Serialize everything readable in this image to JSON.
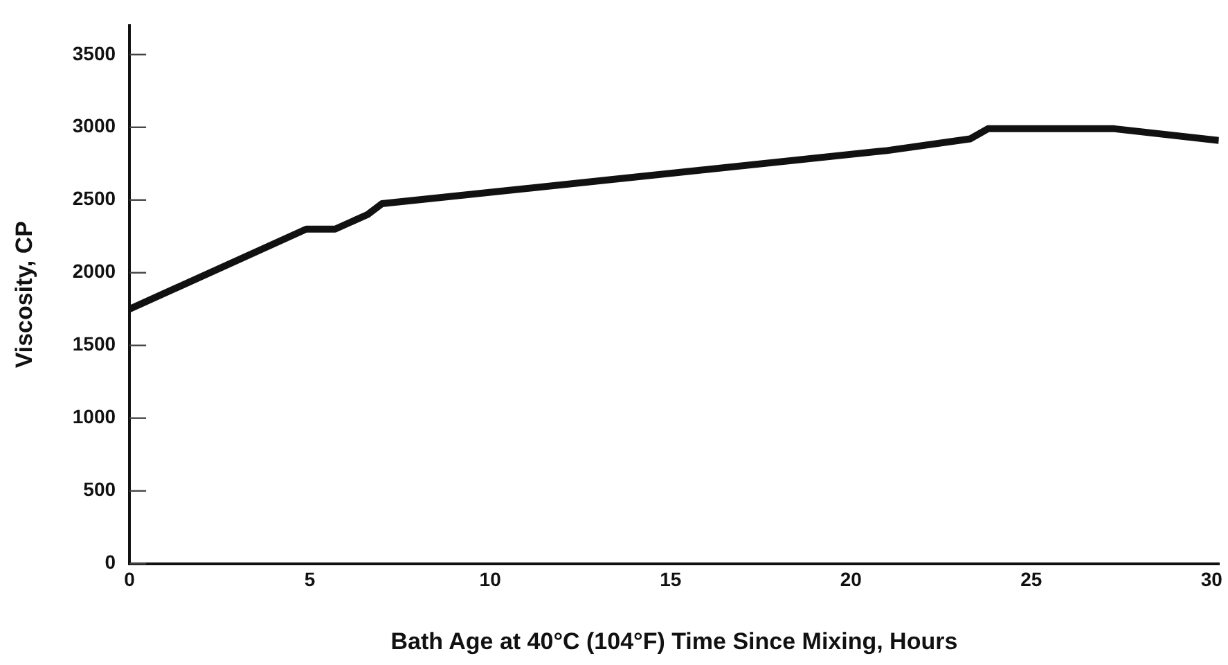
{
  "chart_data": {
    "type": "line",
    "xlabel": "Bath Age at 40°C (104°F) Time Since Mixing, Hours",
    "ylabel": "Viscosity, CP",
    "series": [
      {
        "color": "#111111",
        "x": [
          0,
          4.9,
          5.7,
          6.6,
          7.0,
          21,
          23.3,
          23.8,
          27.3,
          30.2
        ],
        "values": [
          1750,
          2300,
          2300,
          2400,
          2475,
          2840,
          2920,
          2990,
          2990,
          2910
        ]
      }
    ],
    "xlim": [
      0,
      30.2
    ],
    "xticks": [
      0,
      5,
      10,
      15,
      20,
      25,
      30
    ],
    "ylim": [
      0,
      3700
    ],
    "yticks": [
      0,
      500,
      1000,
      1500,
      2000,
      2500,
      3000,
      3500
    ],
    "grid": false,
    "legend": false,
    "marker": "none",
    "line_style": "solid"
  }
}
